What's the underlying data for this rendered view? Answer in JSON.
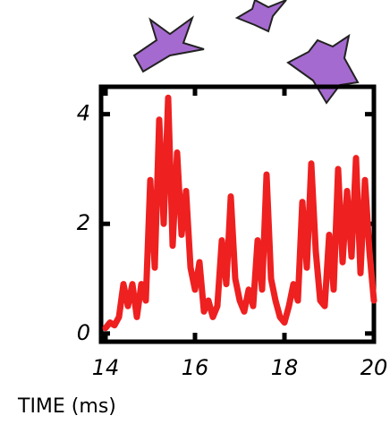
{
  "chart_data": {
    "type": "line",
    "xlabel": "TIME (ms)",
    "x": [
      14.0,
      14.1,
      14.2,
      14.3,
      14.4,
      14.5,
      14.6,
      14.7,
      14.8,
      14.9,
      15.0,
      15.1,
      15.2,
      15.3,
      15.4,
      15.5,
      15.6,
      15.7,
      15.8,
      15.9,
      16.0,
      16.1,
      16.2,
      16.3,
      16.4,
      16.5,
      16.6,
      16.7,
      16.8,
      16.9,
      17.0,
      17.1,
      17.2,
      17.3,
      17.4,
      17.5,
      17.6,
      17.7,
      17.8,
      17.9,
      18.0,
      18.1,
      18.2,
      18.3,
      18.4,
      18.5,
      18.6,
      18.7,
      18.8,
      18.9,
      19.0,
      19.1,
      19.2,
      19.3,
      19.4,
      19.5,
      19.6,
      19.7,
      19.8,
      19.9,
      20.0
    ],
    "values": [
      0.1,
      0.2,
      0.15,
      0.3,
      0.9,
      0.5,
      0.9,
      0.3,
      0.9,
      0.6,
      2.8,
      1.2,
      3.9,
      2.0,
      4.3,
      1.6,
      3.3,
      1.8,
      2.6,
      1.2,
      0.8,
      1.3,
      0.4,
      0.6,
      0.3,
      0.5,
      1.7,
      0.9,
      2.5,
      1.0,
      0.6,
      0.4,
      0.8,
      0.5,
      1.7,
      0.8,
      2.9,
      1.0,
      0.6,
      0.3,
      0.2,
      0.5,
      0.9,
      0.6,
      2.4,
      1.2,
      3.1,
      1.5,
      0.6,
      0.5,
      1.8,
      0.8,
      3.0,
      1.3,
      2.6,
      1.4,
      3.2,
      1.1,
      2.8,
      1.5,
      0.6
    ],
    "color": "#ee2020",
    "xlim": [
      13.9,
      20.0
    ],
    "xticks": [
      14,
      16,
      18,
      20
    ],
    "ylim": [
      -0.15,
      4.5
    ],
    "yticks": [
      0,
      2,
      4
    ]
  }
}
